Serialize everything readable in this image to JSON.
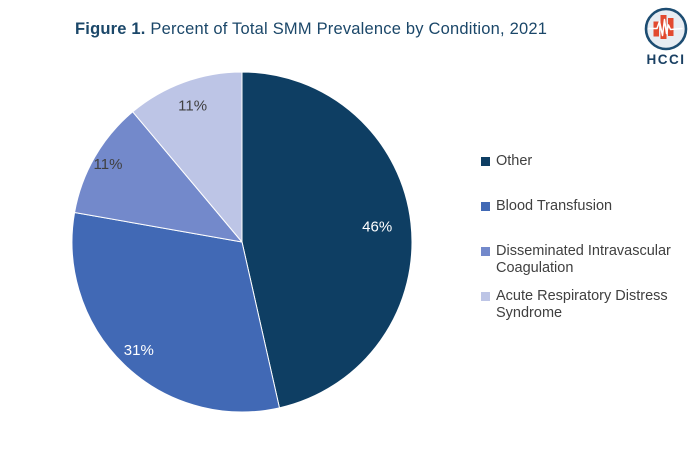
{
  "header": {
    "title_prefix": "Figure 1.",
    "title_rest": " Percent of Total SMM Prevalence by Condition, 2021",
    "title_color": "#1B4769"
  },
  "logo": {
    "text": "HCCI",
    "icon": "hcci-barchart-heartbeat-icon",
    "ring_color": "#1D4D72",
    "inner_color": "#E7ECF2",
    "bar_color": "#E2492F",
    "pulse_color": "#FFFFFF",
    "text_color": "#1A4063"
  },
  "chart_data": {
    "type": "pie",
    "title": "Percent of Total SMM Prevalence by Condition, 2021",
    "labels": [
      "Other",
      "Blood Transfusion",
      "Disseminated Intravascular Coagulation",
      "Acute Respiratory Distress Syndrome"
    ],
    "values": [
      46,
      31,
      11,
      11
    ],
    "unit": "percent of total SMM prevalence",
    "display_labels": [
      "46%",
      "31%",
      "11%",
      "11%"
    ],
    "colors": [
      "#0E3E63",
      "#4169B5",
      "#7389CB",
      "#BDC5E6"
    ],
    "slice_label_colors": [
      "#FFFFFF",
      "#FFFFFF",
      "#404040",
      "#404040"
    ],
    "start_angle_deg": 0,
    "direction": "clockwise",
    "legend_position": "right",
    "grid": false
  },
  "legend": {
    "text_color": "#404040",
    "items": [
      {
        "label": "Other",
        "color": "#0E3E63"
      },
      {
        "label": "Blood Transfusion",
        "color": "#4169B5"
      },
      {
        "label": "Disseminated Intravascular Coagulation",
        "color": "#7389CB"
      },
      {
        "label": "Acute Respiratory Distress Syndrome",
        "color": "#BDC5E6"
      }
    ]
  }
}
